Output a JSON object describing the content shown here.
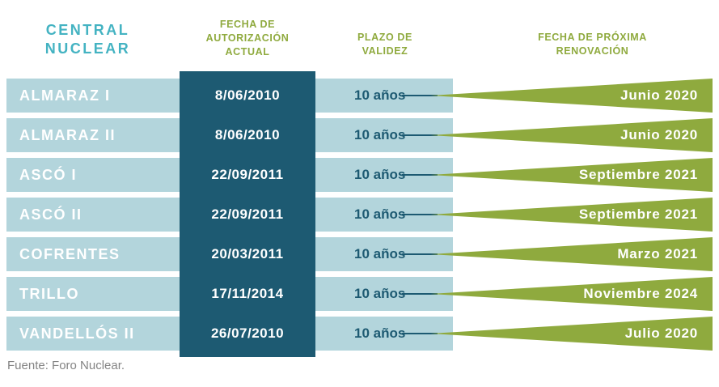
{
  "colors": {
    "row_blue": "#b3d5dc",
    "column_dark_teal": "#1d5a72",
    "renewal_green": "#8faa3e",
    "title_teal": "#44b3c2",
    "source_gray": "#848484"
  },
  "header": {
    "plant": "CENTRAL\nNUCLEAR",
    "authorization": "FECHA DE\nAUTORIZACIÓN\nACTUAL",
    "validity": "PLAZO DE\nVALIDEZ",
    "renewal": "FECHA DE PRÓXIMA\nRENOVACIÓN"
  },
  "source": "Fuente: Foro Nuclear.",
  "chart_data": {
    "type": "table",
    "columns": [
      "CENTRAL NUCLEAR",
      "FECHA DE AUTORIZACIÓN ACTUAL",
      "PLAZO DE VALIDEZ",
      "FECHA DE PRÓXIMA RENOVACIÓN"
    ],
    "rows": [
      [
        "ALMARAZ I",
        "8/06/2010",
        "10 años",
        "Junio 2020"
      ],
      [
        "ALMARAZ II",
        "8/06/2010",
        "10 años",
        "Junio 2020"
      ],
      [
        "ASCÓ I",
        "22/09/2011",
        "10 años",
        "Septiembre 2021"
      ],
      [
        "ASCÓ II",
        "22/09/2011",
        "10 años",
        "Septiembre 2021"
      ],
      [
        "COFRENTES",
        "20/03/2011",
        "10 años",
        "Marzo 2021"
      ],
      [
        "TRILLO",
        "17/11/2014",
        "10 años",
        "Noviembre 2024"
      ],
      [
        "VANDELLÓS II",
        "26/07/2010",
        "10 años",
        "Julio 2020"
      ]
    ],
    "source": "Fuente: Foro Nuclear."
  }
}
